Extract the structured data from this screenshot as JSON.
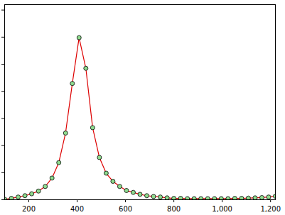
{
  "chart_data": {
    "type": "line",
    "x": [
      100,
      128,
      156,
      184,
      212,
      240,
      268,
      296,
      324,
      352,
      380,
      408,
      436,
      464,
      492,
      520,
      548,
      576,
      604,
      632,
      660,
      688,
      716,
      744,
      772,
      800,
      828,
      856,
      884,
      912,
      940,
      968,
      996,
      1024,
      1052,
      1080,
      1108,
      1136,
      1164,
      1192,
      1220
    ],
    "series": [
      {
        "color": "#dd0000",
        "marker": "o",
        "line_style": "solid",
        "values": [
          0.02,
          0.05,
          0.1,
          0.15,
          0.22,
          0.32,
          0.49,
          0.8,
          1.37,
          2.46,
          4.29,
          5.98,
          4.85,
          2.66,
          1.56,
          0.98,
          0.68,
          0.49,
          0.34,
          0.27,
          0.2,
          0.15,
          0.12,
          0.1,
          0.07,
          0.05,
          0.05,
          0.04,
          0.04,
          0.04,
          0.04,
          0.04,
          0.04,
          0.04,
          0.05,
          0.05,
          0.06,
          0.07,
          0.08,
          0.1,
          0.13
        ]
      }
    ],
    "xlim": [
      100,
      1220
    ],
    "xticks": [
      200,
      400,
      600,
      800,
      1000,
      1200
    ],
    "ylim": [
      0,
      7.2
    ],
    "yticks": [
      0,
      1,
      2,
      3,
      4,
      5,
      6,
      7
    ],
    "tick_labels": "x",
    "grid": false
  }
}
